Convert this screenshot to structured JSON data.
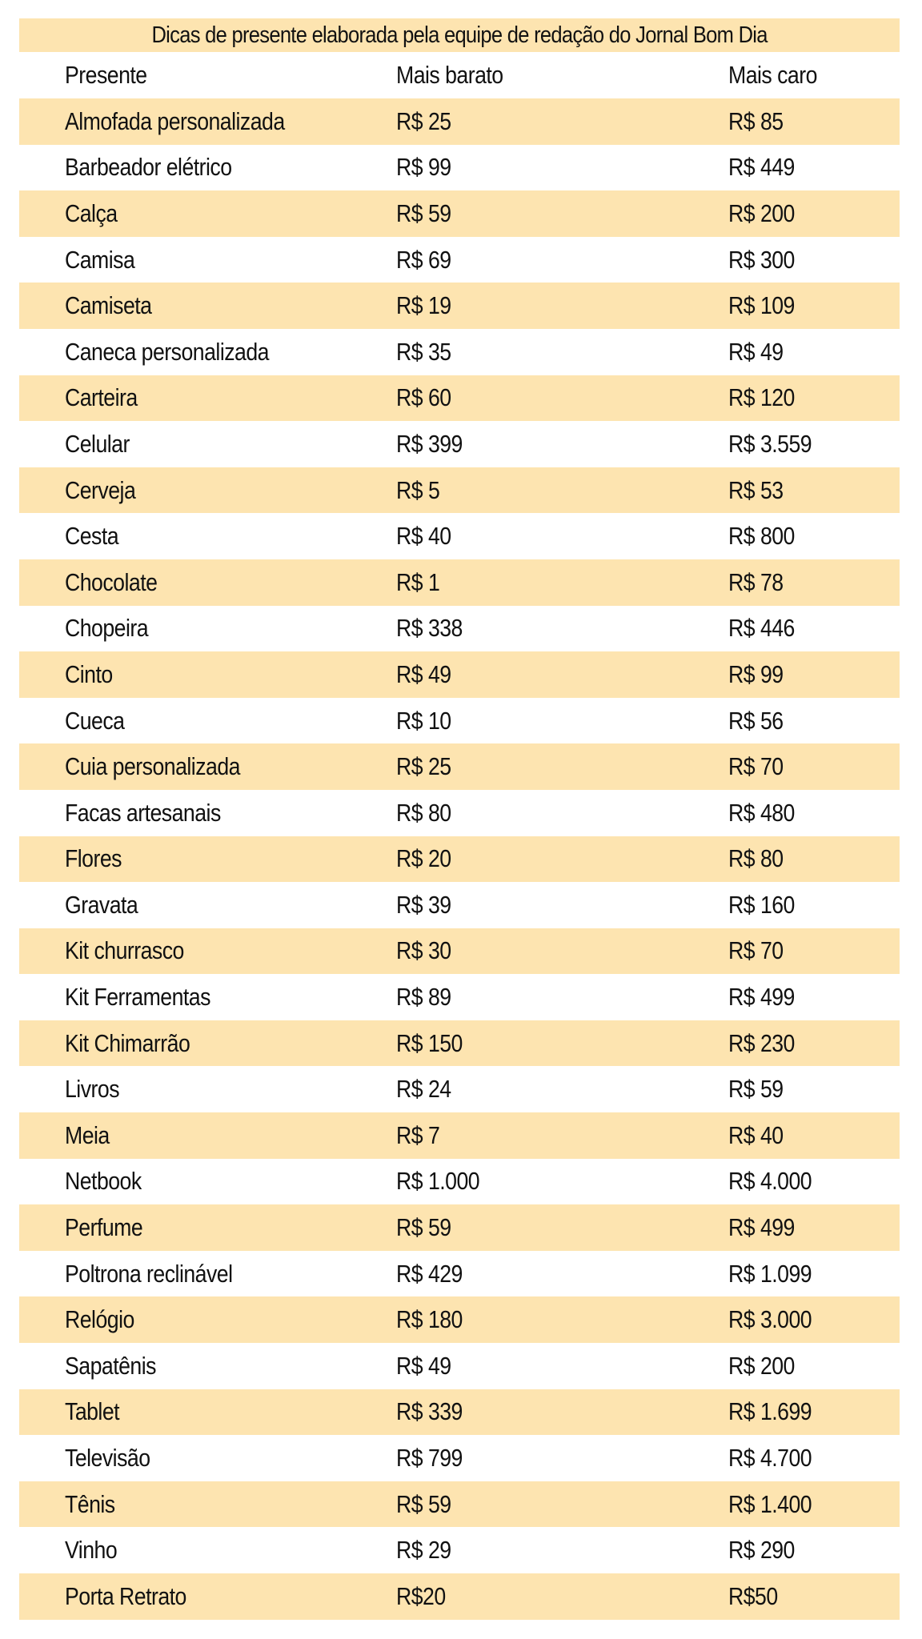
{
  "title": "Dicas de presente elaborada pela equipe de redação do Jornal Bom Dia",
  "headers": {
    "gift": "Presente",
    "cheapest": "Mais barato",
    "priciest": "Mais caro"
  },
  "colors": {
    "stripe": "#fde4b0",
    "text": "#111111",
    "background": "#ffffff"
  },
  "rows": [
    {
      "gift": "Almofada personalizada",
      "cheapest": "R$ 25",
      "priciest": "R$ 85"
    },
    {
      "gift": "Barbeador elétrico",
      "cheapest": "R$ 99",
      "priciest": "R$ 449"
    },
    {
      "gift": "Calça",
      "cheapest": "R$ 59",
      "priciest": "R$ 200"
    },
    {
      "gift": "Camisa",
      "cheapest": "R$ 69",
      "priciest": "R$ 300"
    },
    {
      "gift": "Camiseta",
      "cheapest": "R$ 19",
      "priciest": "R$ 109"
    },
    {
      "gift": "Caneca personalizada",
      "cheapest": "R$ 35",
      "priciest": "R$ 49"
    },
    {
      "gift": "Carteira",
      "cheapest": "R$ 60",
      "priciest": "R$ 120"
    },
    {
      "gift": "Celular",
      "cheapest": "R$ 399",
      "priciest": "R$ 3.559"
    },
    {
      "gift": "Cerveja",
      "cheapest": "R$ 5",
      "priciest": "R$ 53"
    },
    {
      "gift": "Cesta",
      "cheapest": "R$ 40",
      "priciest": "R$ 800"
    },
    {
      "gift": "Chocolate",
      "cheapest": "R$ 1",
      "priciest": "R$ 78"
    },
    {
      "gift": "Chopeira",
      "cheapest": "R$ 338",
      "priciest": "R$ 446"
    },
    {
      "gift": "Cinto",
      "cheapest": "R$ 49",
      "priciest": "R$ 99"
    },
    {
      "gift": "Cueca",
      "cheapest": "R$ 10",
      "priciest": "R$ 56"
    },
    {
      "gift": "Cuia personalizada",
      "cheapest": "R$ 25",
      "priciest": "R$ 70"
    },
    {
      "gift": "Facas artesanais",
      "cheapest": "R$ 80",
      "priciest": "R$ 480"
    },
    {
      "gift": "Flores",
      "cheapest": "R$ 20",
      "priciest": "R$ 80"
    },
    {
      "gift": "Gravata",
      "cheapest": "R$ 39",
      "priciest": "R$ 160"
    },
    {
      "gift": "Kit churrasco",
      "cheapest": "R$ 30",
      "priciest": "R$ 70"
    },
    {
      "gift": "Kit Ferramentas",
      "cheapest": "R$ 89",
      "priciest": "R$ 499"
    },
    {
      "gift": "Kit Chimarrão",
      "cheapest": "R$ 150",
      "priciest": "R$ 230"
    },
    {
      "gift": "Livros",
      "cheapest": "R$ 24",
      "priciest": "R$ 59"
    },
    {
      "gift": "Meia",
      "cheapest": "R$ 7",
      "priciest": "R$ 40"
    },
    {
      "gift": "Netbook",
      "cheapest": "R$ 1.000",
      "priciest": "R$ 4.000"
    },
    {
      "gift": "Perfume",
      "cheapest": "R$ 59",
      "priciest": "R$ 499"
    },
    {
      "gift": "Poltrona reclinável",
      "cheapest": "R$ 429",
      "priciest": "R$ 1.099"
    },
    {
      "gift": "Relógio",
      "cheapest": "R$ 180",
      "priciest": "R$ 3.000"
    },
    {
      "gift": "Sapatênis",
      "cheapest": "R$ 49",
      "priciest": "R$ 200"
    },
    {
      "gift": "Tablet",
      "cheapest": "R$ 339",
      "priciest": "R$ 1.699"
    },
    {
      "gift": "Televisão",
      "cheapest": "R$ 799",
      "priciest": "R$ 4.700"
    },
    {
      "gift": "Tênis",
      "cheapest": "R$ 59",
      "priciest": "R$ 1.400"
    },
    {
      "gift": "Vinho",
      "cheapest": "R$ 29",
      "priciest": "R$ 290"
    },
    {
      "gift": "Porta Retrato",
      "cheapest": "R$20",
      "priciest": "R$50"
    }
  ]
}
